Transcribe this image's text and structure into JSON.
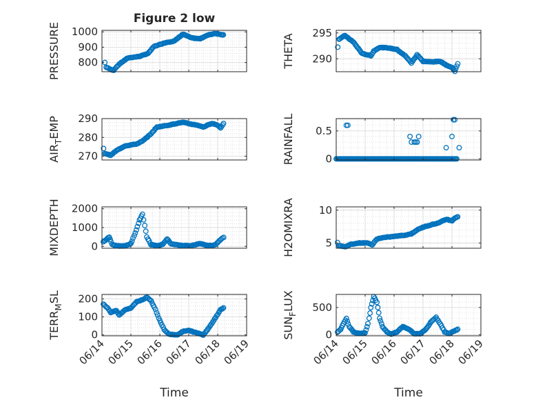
{
  "figure": {
    "title": "Figure 2 low",
    "xlabel": "Time",
    "marker_color": "#0072bd",
    "grid_color": "#d9d9d9",
    "axis_color": "#262626"
  },
  "chart_data": [
    {
      "type": "scatter",
      "ylabel": "PRESSURE",
      "ylabel_main": "PRESSURE",
      "ylabel_sub": "",
      "title": "Figure 2 low",
      "xlabel": "",
      "ylim": [
        740,
        1010
      ],
      "yticks": [
        800,
        900,
        1000
      ],
      "ytick_labels": [
        "800",
        "900",
        "1000"
      ],
      "xlim": [
        14,
        19
      ],
      "xticks": [
        14,
        15,
        16,
        17,
        18,
        19
      ],
      "xtick_labels": [
        "06/14",
        "06/15",
        "06/16",
        "06/17",
        "06/18",
        "06/19"
      ],
      "show_xticklabels": false,
      "key_points": [
        [
          14.1,
          800
        ],
        [
          14.15,
          770
        ],
        [
          14.3,
          755
        ],
        [
          14.4,
          750
        ],
        [
          14.6,
          790
        ],
        [
          14.9,
          830
        ],
        [
          15.3,
          840
        ],
        [
          15.6,
          860
        ],
        [
          15.8,
          905
        ],
        [
          16.2,
          930
        ],
        [
          16.5,
          940
        ],
        [
          16.8,
          985
        ],
        [
          17.1,
          960
        ],
        [
          17.4,
          955
        ],
        [
          17.6,
          975
        ],
        [
          17.9,
          990
        ],
        [
          18.2,
          980
        ]
      ]
    },
    {
      "type": "scatter",
      "ylabel": "THETA",
      "ylabel_main": "THETA",
      "ylabel_sub": "",
      "title": "",
      "xlabel": "",
      "ylim": [
        287.5,
        295.5
      ],
      "yticks": [
        290,
        295
      ],
      "ytick_labels": [
        "290",
        "295"
      ],
      "xlim": [
        14,
        19
      ],
      "xticks": [
        14,
        15,
        16,
        17,
        18,
        19
      ],
      "xtick_labels": [
        "06/14",
        "06/15",
        "06/16",
        "06/17",
        "06/18",
        "06/19"
      ],
      "show_xticklabels": false,
      "key_points": [
        [
          14.05,
          292.3
        ],
        [
          14.1,
          293.8
        ],
        [
          14.3,
          294.5
        ],
        [
          14.6,
          293.2
        ],
        [
          14.9,
          291.0
        ],
        [
          15.2,
          290.6
        ],
        [
          15.3,
          291.5
        ],
        [
          15.5,
          292.2
        ],
        [
          15.8,
          292.1
        ],
        [
          16.1,
          291.8
        ],
        [
          16.4,
          290.5
        ],
        [
          16.6,
          289.2
        ],
        [
          16.8,
          290.8
        ],
        [
          17.0,
          289.5
        ],
        [
          17.3,
          289.4
        ],
        [
          17.6,
          289.5
        ],
        [
          17.8,
          288.8
        ],
        [
          18.0,
          288.3
        ],
        [
          18.1,
          287.6
        ],
        [
          18.2,
          289.0
        ]
      ]
    },
    {
      "type": "scatter",
      "ylabel": "AIR_TEMP",
      "ylabel_main": "AIR",
      "ylabel_sub": "T",
      "ylabel_rest": "EMP",
      "title": "",
      "xlabel": "",
      "ylim": [
        268,
        290
      ],
      "yticks": [
        270,
        280,
        290
      ],
      "ytick_labels": [
        "270",
        "280",
        "290"
      ],
      "xlim": [
        14,
        19
      ],
      "xticks": [
        14,
        15,
        16,
        17,
        18,
        19
      ],
      "xtick_labels": [
        "06/14",
        "06/15",
        "06/16",
        "06/17",
        "06/18",
        "06/19"
      ],
      "show_xticklabels": false,
      "key_points": [
        [
          14.05,
          274
        ],
        [
          14.1,
          271.5
        ],
        [
          14.3,
          270.5
        ],
        [
          14.5,
          273
        ],
        [
          14.8,
          275.5
        ],
        [
          15.2,
          276.5
        ],
        [
          15.4,
          278
        ],
        [
          15.7,
          282
        ],
        [
          15.9,
          285.5
        ],
        [
          16.3,
          286.5
        ],
        [
          16.6,
          287.5
        ],
        [
          16.8,
          288
        ],
        [
          17.1,
          287
        ],
        [
          17.3,
          286.5
        ],
        [
          17.5,
          285.5
        ],
        [
          17.8,
          287.5
        ],
        [
          18.0,
          286.5
        ],
        [
          18.1,
          285
        ],
        [
          18.2,
          287.5
        ]
      ]
    },
    {
      "type": "scatter",
      "ylabel": "RAINFALL",
      "ylabel_main": "RAINFALL",
      "ylabel_sub": "",
      "title": "",
      "xlabel": "",
      "ylim": [
        -0.02,
        0.72
      ],
      "yticks": [
        0,
        0.5
      ],
      "ytick_labels": [
        "0",
        "0.5"
      ],
      "xlim": [
        14,
        19
      ],
      "xticks": [
        14,
        15,
        16,
        17,
        18,
        19
      ],
      "xtick_labels": [
        "06/14",
        "06/15",
        "06/16",
        "06/17",
        "06/18",
        "06/19"
      ],
      "show_xticklabels": false,
      "baseline": [
        14.0,
        18.2,
        0
      ],
      "spikes": [
        [
          14.35,
          0.6
        ],
        [
          14.4,
          0.6
        ],
        [
          16.55,
          0.4
        ],
        [
          16.6,
          0.3
        ],
        [
          16.7,
          0.3
        ],
        [
          16.75,
          0.3
        ],
        [
          16.8,
          0.3
        ],
        [
          16.85,
          0.4
        ],
        [
          17.8,
          0.2
        ],
        [
          18.0,
          0.4
        ],
        [
          18.05,
          0.7
        ],
        [
          18.1,
          0.7
        ],
        [
          18.25,
          0.2
        ]
      ]
    },
    {
      "type": "scatter",
      "ylabel": "MIXDEPTH",
      "ylabel_main": "MIXDEPTH",
      "ylabel_sub": "",
      "title": "",
      "xlabel": "",
      "ylim": [
        -100,
        2100
      ],
      "yticks": [
        0,
        1000,
        2000
      ],
      "ytick_labels": [
        "0",
        "1000",
        "2000"
      ],
      "xlim": [
        14,
        19
      ],
      "xticks": [
        14,
        15,
        16,
        17,
        18,
        19
      ],
      "xtick_labels": [
        "06/14",
        "06/15",
        "06/16",
        "06/17",
        "06/18",
        "06/19"
      ],
      "show_xticklabels": false,
      "key_points": [
        [
          14.05,
          250
        ],
        [
          14.15,
          350
        ],
        [
          14.25,
          500
        ],
        [
          14.35,
          100
        ],
        [
          14.5,
          30
        ],
        [
          14.8,
          20
        ],
        [
          15.0,
          150
        ],
        [
          15.15,
          700
        ],
        [
          15.3,
          1400
        ],
        [
          15.4,
          1700
        ],
        [
          15.55,
          500
        ],
        [
          15.7,
          80
        ],
        [
          15.9,
          40
        ],
        [
          16.1,
          100
        ],
        [
          16.25,
          400
        ],
        [
          16.4,
          120
        ],
        [
          16.8,
          40
        ],
        [
          17.1,
          40
        ],
        [
          17.4,
          150
        ],
        [
          17.6,
          60
        ],
        [
          17.8,
          40
        ],
        [
          17.95,
          120
        ],
        [
          18.05,
          300
        ],
        [
          18.2,
          480
        ]
      ]
    },
    {
      "type": "scatter",
      "ylabel": "H2OMIXRA",
      "ylabel_main": "H2OMIXRA",
      "ylabel_sub": "",
      "title": "",
      "xlabel": "",
      "ylim": [
        4.2,
        10.5
      ],
      "yticks": [
        5,
        10
      ],
      "ytick_labels": [
        "5",
        "10"
      ],
      "xlim": [
        14,
        19
      ],
      "xticks": [
        14,
        15,
        16,
        17,
        18,
        19
      ],
      "xtick_labels": [
        "06/14",
        "06/15",
        "06/16",
        "06/17",
        "06/18",
        "06/19"
      ],
      "show_xticklabels": false,
      "key_points": [
        [
          14.05,
          5.1
        ],
        [
          14.1,
          4.6
        ],
        [
          14.3,
          4.4
        ],
        [
          14.5,
          4.8
        ],
        [
          14.8,
          5.0
        ],
        [
          15.1,
          5.0
        ],
        [
          15.25,
          4.7
        ],
        [
          15.4,
          5.6
        ],
        [
          15.6,
          5.8
        ],
        [
          16.0,
          6.0
        ],
        [
          16.4,
          6.2
        ],
        [
          16.6,
          6.4
        ],
        [
          16.8,
          7.0
        ],
        [
          17.0,
          7.4
        ],
        [
          17.3,
          7.8
        ],
        [
          17.5,
          8.0
        ],
        [
          17.8,
          8.6
        ],
        [
          18.0,
          8.4
        ],
        [
          18.1,
          8.8
        ],
        [
          18.2,
          9.0
        ]
      ]
    },
    {
      "type": "scatter",
      "ylabel": "TERR_MSL",
      "ylabel_main": "TERR",
      "ylabel_sub": "M",
      "ylabel_rest": "SL",
      "title": "",
      "xlabel": "Time",
      "ylim": [
        -5,
        225
      ],
      "yticks": [
        0,
        100,
        200
      ],
      "ytick_labels": [
        "0",
        "100",
        "200"
      ],
      "xlim": [
        14,
        19
      ],
      "xticks": [
        14,
        15,
        16,
        17,
        18,
        19
      ],
      "xtick_labels": [
        "06/14",
        "06/15",
        "06/16",
        "06/17",
        "06/18",
        "06/19"
      ],
      "show_xticklabels": true,
      "key_points": [
        [
          14.05,
          170
        ],
        [
          14.2,
          150
        ],
        [
          14.3,
          125
        ],
        [
          14.5,
          135
        ],
        [
          14.6,
          110
        ],
        [
          14.8,
          140
        ],
        [
          15.0,
          150
        ],
        [
          15.2,
          185
        ],
        [
          15.4,
          195
        ],
        [
          15.55,
          210
        ],
        [
          15.7,
          190
        ],
        [
          15.85,
          140
        ],
        [
          16.0,
          80
        ],
        [
          16.15,
          30
        ],
        [
          16.3,
          5
        ],
        [
          16.6,
          0
        ],
        [
          16.8,
          20
        ],
        [
          17.0,
          25
        ],
        [
          17.3,
          10
        ],
        [
          17.5,
          0
        ],
        [
          17.7,
          40
        ],
        [
          17.9,
          90
        ],
        [
          18.1,
          140
        ],
        [
          18.2,
          150
        ]
      ]
    },
    {
      "type": "scatter",
      "ylabel": "SUN_FLUX",
      "ylabel_main": "SUN",
      "ylabel_sub": "F",
      "ylabel_rest": "LUX",
      "title": "",
      "xlabel": "Time",
      "ylim": [
        -20,
        740
      ],
      "yticks": [
        0,
        500
      ],
      "ytick_labels": [
        "0",
        "500"
      ],
      "xlim": [
        14,
        19
      ],
      "xticks": [
        14,
        15,
        16,
        17,
        18,
        19
      ],
      "xtick_labels": [
        "06/14",
        "06/15",
        "06/16",
        "06/17",
        "06/18",
        "06/19"
      ],
      "show_xticklabels": true,
      "key_points": [
        [
          14.05,
          50
        ],
        [
          14.15,
          100
        ],
        [
          14.25,
          200
        ],
        [
          14.35,
          300
        ],
        [
          14.45,
          150
        ],
        [
          14.6,
          50
        ],
        [
          14.8,
          20
        ],
        [
          15.0,
          30
        ],
        [
          15.1,
          200
        ],
        [
          15.2,
          500
        ],
        [
          15.3,
          700
        ],
        [
          15.4,
          600
        ],
        [
          15.5,
          300
        ],
        [
          15.6,
          150
        ],
        [
          15.75,
          50
        ],
        [
          15.9,
          10
        ],
        [
          16.1,
          50
        ],
        [
          16.3,
          150
        ],
        [
          16.5,
          100
        ],
        [
          16.7,
          20
        ],
        [
          16.9,
          20
        ],
        [
          17.1,
          100
        ],
        [
          17.3,
          250
        ],
        [
          17.45,
          320
        ],
        [
          17.6,
          200
        ],
        [
          17.75,
          50
        ],
        [
          17.9,
          20
        ],
        [
          18.05,
          60
        ],
        [
          18.2,
          100
        ]
      ]
    }
  ]
}
